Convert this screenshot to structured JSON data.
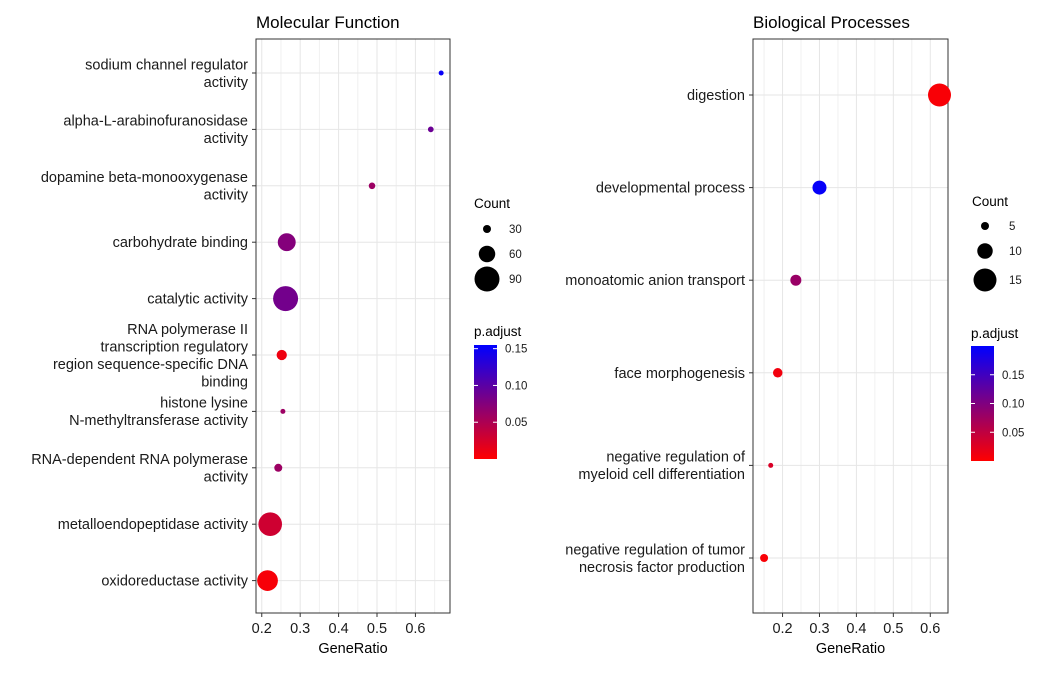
{
  "chart_data": [
    {
      "type": "scatter",
      "title": "Molecular Function",
      "xlabel": "GeneRatio",
      "ylabel": "",
      "xlim": [
        0.185,
        0.69
      ],
      "xticks": [
        "0.2",
        "0.3",
        "0.4",
        "0.5",
        "0.6"
      ],
      "xtick_values": [
        0.2,
        0.3,
        0.4,
        0.5,
        0.6
      ],
      "grid": true,
      "categories": [
        [
          "sodium channel regulator",
          "activity"
        ],
        [
          "alpha-L-arabinofuranosidase",
          "activity"
        ],
        [
          "dopamine beta-monooxygenase",
          "activity"
        ],
        [
          "carbohydrate binding"
        ],
        [
          "catalytic activity"
        ],
        [
          "RNA polymerase II",
          "transcription regulatory",
          "region sequence-specific DNA",
          "binding"
        ],
        [
          "histone lysine",
          "N-methyltransferase activity"
        ],
        [
          "RNA-dependent RNA polymerase",
          "activity"
        ],
        [
          "metalloendopeptidase activity"
        ],
        [
          "oxidoreductase activity"
        ]
      ],
      "points": [
        {
          "x": 0.667,
          "count": 18,
          "p_adjust": 0.15
        },
        {
          "x": 0.64,
          "count": 22,
          "p_adjust": 0.09
        },
        {
          "x": 0.487,
          "count": 25,
          "p_adjust": 0.06
        },
        {
          "x": 0.265,
          "count": 65,
          "p_adjust": 0.075
        },
        {
          "x": 0.262,
          "count": 90,
          "p_adjust": 0.085
        },
        {
          "x": 0.252,
          "count": 38,
          "p_adjust": 0.01
        },
        {
          "x": 0.255,
          "count": 12,
          "p_adjust": 0.06
        },
        {
          "x": 0.243,
          "count": 30,
          "p_adjust": 0.06
        },
        {
          "x": 0.222,
          "count": 85,
          "p_adjust": 0.03
        },
        {
          "x": 0.215,
          "count": 75,
          "p_adjust": 0.005
        }
      ],
      "size_legend": {
        "title": "Count",
        "values": [
          30,
          60,
          90
        ],
        "labels": [
          "30",
          "60",
          "90"
        ]
      },
      "color_legend": {
        "title": "p.adjust",
        "min": 0.0,
        "max": 0.155,
        "ticks": [
          0.05,
          0.1,
          0.15
        ],
        "labels": [
          "0.05",
          "0.10",
          "0.15"
        ],
        "low_color": "#ff0000",
        "high_color": "#0000ff"
      }
    },
    {
      "type": "scatter",
      "title": "Biological Processes",
      "xlabel": "GeneRatio",
      "ylabel": "",
      "xlim": [
        0.12,
        0.648
      ],
      "xticks": [
        "0.2",
        "0.3",
        "0.4",
        "0.5",
        "0.6"
      ],
      "xtick_values": [
        0.2,
        0.3,
        0.4,
        0.5,
        0.6
      ],
      "grid": true,
      "categories": [
        [
          "digestion"
        ],
        [
          "developmental process"
        ],
        [
          "monoatomic anion transport"
        ],
        [
          "face morphogenesis"
        ],
        [
          "negative regulation of",
          "myeloid cell differentiation"
        ],
        [
          "negative regulation of tumor",
          "necrosis factor production"
        ]
      ],
      "points": [
        {
          "x": 0.625,
          "count": 15,
          "p_adjust": 0.005
        },
        {
          "x": 0.3,
          "count": 9,
          "p_adjust": 0.195
        },
        {
          "x": 0.236,
          "count": 7,
          "p_adjust": 0.08
        },
        {
          "x": 0.187,
          "count": 6,
          "p_adjust": 0.01
        },
        {
          "x": 0.168,
          "count": 3,
          "p_adjust": 0.03
        },
        {
          "x": 0.15,
          "count": 5,
          "p_adjust": 0.005
        }
      ],
      "size_legend": {
        "title": "Count",
        "values": [
          5,
          10,
          15
        ],
        "labels": [
          "5",
          "10",
          "15"
        ]
      },
      "color_legend": {
        "title": "p.adjust",
        "min": 0.0,
        "max": 0.2,
        "ticks": [
          0.05,
          0.1,
          0.15
        ],
        "labels": [
          "0.05",
          "0.10",
          "0.15"
        ],
        "low_color": "#ff0000",
        "high_color": "#0000ff"
      }
    }
  ]
}
